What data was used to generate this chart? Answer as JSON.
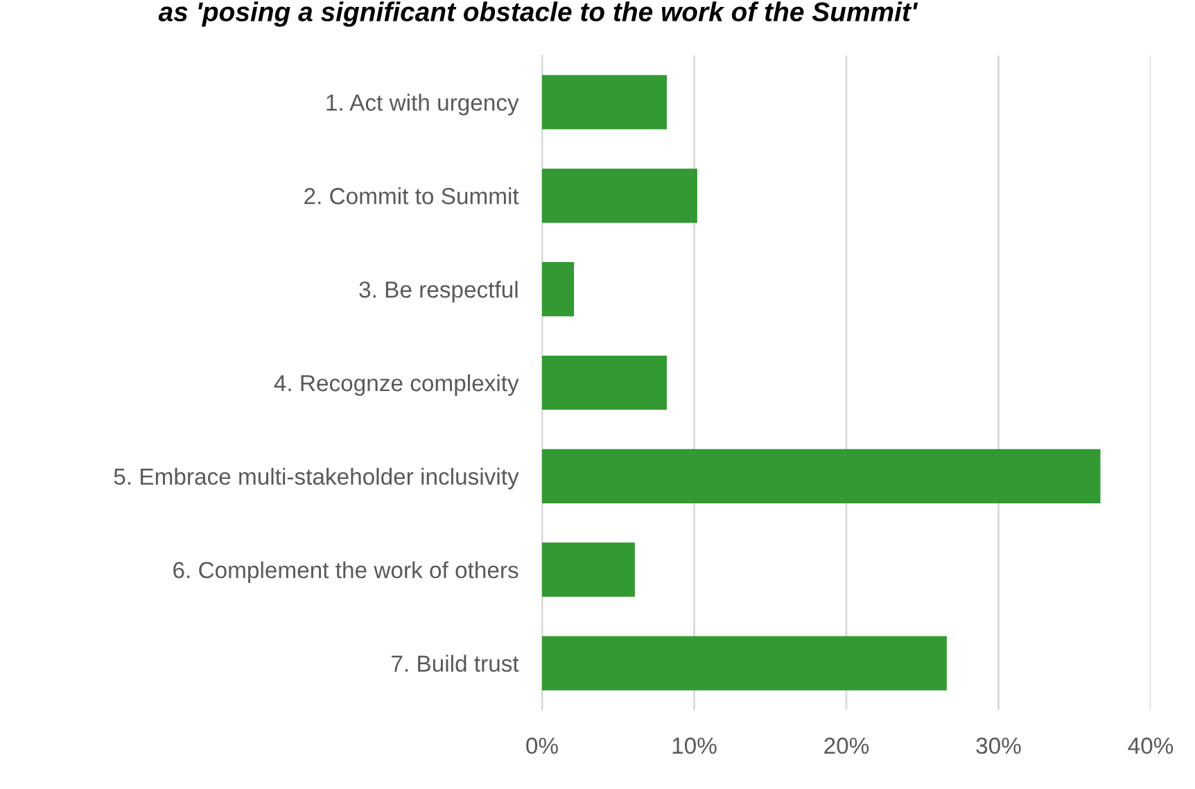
{
  "chart_data": {
    "type": "bar",
    "orientation": "horizontal",
    "title": "as 'posing a significant obstacle to the work of the Summit'",
    "categories": [
      "1. Act with urgency",
      "2. Commit to Summit",
      "3. Be respectful",
      "4. Recognze complexity",
      "5. Embrace multi-stakeholder inclusivity",
      "6. Complement the work of others",
      "7. Build trust"
    ],
    "values": [
      8.2,
      10.2,
      2.1,
      8.2,
      36.7,
      6.1,
      26.6
    ],
    "color": "#339933",
    "xlim": [
      0,
      40
    ],
    "xticks": [
      {
        "value": 0,
        "label": "0%"
      },
      {
        "value": 10,
        "label": "10%"
      },
      {
        "value": 20,
        "label": "20%"
      },
      {
        "value": 30,
        "label": "30%"
      },
      {
        "value": 40,
        "label": "40%"
      }
    ],
    "grid": "x",
    "legend": false
  }
}
